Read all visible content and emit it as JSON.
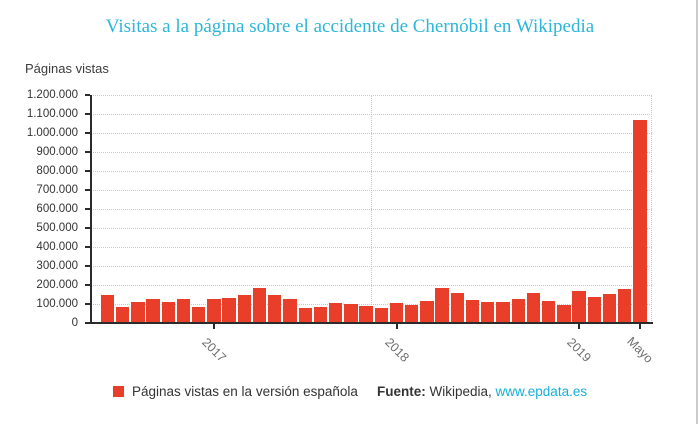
{
  "title": "Visitas a la página sobre el accidente de Chernóbil en Wikipedia",
  "colors": {
    "title": "#2cb6d9",
    "bar": "#e93e29",
    "link": "#14b0d6",
    "axis": "#2b2b2b",
    "grid": "#c9c9c9",
    "edge_line": "#cccccc"
  },
  "chart": {
    "ylabel": "Páginas vistas"
  },
  "chart_data": {
    "type": "bar",
    "title": "Visitas a la página sobre el accidente de Chernóbil en Wikipedia",
    "ylabel": "Páginas vistas",
    "xlabel": "",
    "ylim": [
      0,
      1200000
    ],
    "y_tick_step": 100000,
    "y_tick_labels": [
      "1.200.000",
      "1.100.000",
      "1.000.000",
      "900.000",
      "800.000",
      "700.000",
      "600.000",
      "500.000",
      "400.000",
      "300.000",
      "200.000",
      "100.000",
      "0"
    ],
    "grid": "dotted",
    "n_bars": 36,
    "values": [
      150000,
      85000,
      110000,
      125000,
      112000,
      128000,
      83000,
      124000,
      130000,
      146000,
      185000,
      148000,
      125000,
      80000,
      84000,
      105000,
      100000,
      89000,
      81000,
      105000,
      97000,
      116000,
      184000,
      158000,
      121000,
      113000,
      108000,
      126000,
      156000,
      118000,
      97000,
      168000,
      135000,
      152000,
      180000,
      1070000
    ],
    "x_ticks": [
      {
        "label": "2017",
        "bar_index": 7
      },
      {
        "label": "2018",
        "bar_index": 19
      },
      {
        "label": "2019",
        "bar_index": 31
      },
      {
        "label": "Mayo",
        "bar_index": 35
      }
    ],
    "legend_position": "bottom"
  },
  "legend": {
    "label": "Páginas vistas en la versión española"
  },
  "source": {
    "prefix": "Fuente:",
    "text": " Wikipedia, ",
    "link": "www.epdata.es"
  }
}
